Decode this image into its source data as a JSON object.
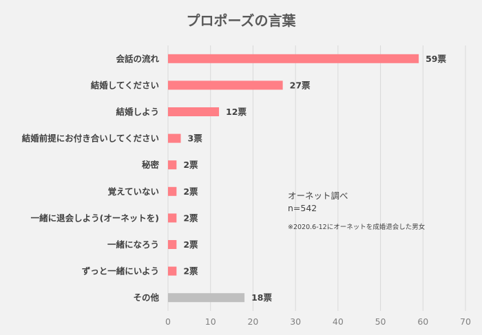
{
  "chart_data": {
    "type": "bar",
    "orientation": "horizontal",
    "title": "プロポーズの言葉",
    "categories": [
      "会話の流れ",
      "結婚してください",
      "結婚しよう",
      "結婚前提にお付き合いしてください",
      "秘密",
      "覚えていない",
      "一緒に退会しよう(オーネットを)",
      "一緒になろう",
      "ずっと一緒にいよう",
      "その他"
    ],
    "values": [
      59,
      27,
      12,
      3,
      2,
      2,
      2,
      2,
      2,
      18
    ],
    "value_labels": [
      "59票",
      "27票",
      "12票",
      "3票",
      "2票",
      "2票",
      "2票",
      "2票",
      "2票",
      "18票"
    ],
    "bar_colors": [
      "#ff7f86",
      "#ff7f86",
      "#ff7f86",
      "#ff7f86",
      "#ff7f86",
      "#ff7f86",
      "#ff7f86",
      "#ff7f86",
      "#ff7f86",
      "#bfbfbf"
    ],
    "xlim": [
      0,
      70
    ],
    "xticks": [
      0,
      10,
      20,
      30,
      40,
      50,
      60,
      70
    ],
    "grid": true,
    "xlabel": "",
    "ylabel": ""
  },
  "annotation": {
    "source": "オーネット調べ",
    "sample": "n=542",
    "footnote": "※2020.6-12にオーネットを成婚退会した男女"
  },
  "colors": {
    "background": "#f2f2f2",
    "bar": "#ff7f86",
    "other_bar": "#bfbfbf",
    "grid": "#d9d9d9",
    "text": "#404040"
  }
}
